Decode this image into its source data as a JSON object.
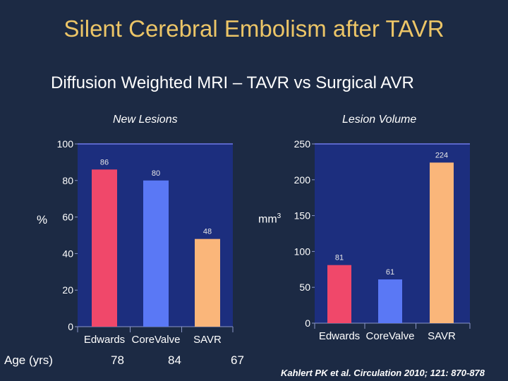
{
  "title": "Silent Cerebral Embolism after TAVR",
  "subtitle": "Diffusion Weighted MRI – TAVR vs Surgical AVR",
  "colors": {
    "background": "#1c2a44",
    "title": "#ecc567",
    "plot_bg": "#1c2e7e",
    "edwards": "#f0486a",
    "corevalve": "#5a78f5",
    "savr": "#fab67a"
  },
  "age_row": {
    "label": "Age (yrs)",
    "values": [
      "78",
      "84",
      "67"
    ]
  },
  "citation": "Kahlert PK et al. Circulation 2010; 121: 870-878",
  "chart_data": [
    {
      "type": "bar",
      "title": "New Lesions",
      "ylabel": "%",
      "xlabel": "",
      "categories": [
        "Edwards",
        "CoreValve",
        "SAVR"
      ],
      "values": [
        86,
        80,
        48
      ],
      "data_labels": [
        "86",
        "80",
        "48"
      ],
      "ylim": [
        0,
        100
      ],
      "yticks": [
        0,
        20,
        40,
        60,
        80,
        100
      ],
      "grid": false
    },
    {
      "type": "bar",
      "title": "Lesion Volume",
      "ylabel": "mm",
      "ylabel_sup": "3",
      "xlabel": "",
      "categories": [
        "Edwards",
        "CoreValve",
        "SAVR"
      ],
      "values": [
        81,
        61,
        224
      ],
      "data_labels": [
        "81",
        "61",
        "224"
      ],
      "ylim": [
        0,
        250
      ],
      "yticks": [
        0,
        50,
        100,
        150,
        200,
        250
      ],
      "grid": false
    }
  ]
}
